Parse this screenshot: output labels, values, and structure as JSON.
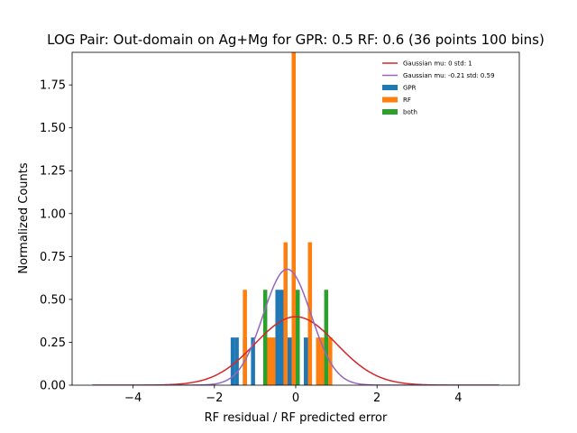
{
  "chart_data": {
    "type": "bar",
    "title": "LOG Pair: Out-domain on Ag+Mg for GPR: 0.5 RF: 0.6 (36 points 100 bins)",
    "xlabel": "RF residual / RF predicted error",
    "ylabel": "Normalized Counts",
    "xlim": [
      -5.5,
      5.5
    ],
    "ylim": [
      0,
      1.94
    ],
    "xticks": [
      -4,
      -2,
      0,
      2,
      4
    ],
    "xtick_labels": [
      "−4",
      "−2",
      "0",
      "2",
      "4"
    ],
    "yticks": [
      0.0,
      0.25,
      0.5,
      0.75,
      1.0,
      1.25,
      1.5,
      1.75
    ],
    "ytick_labels": [
      "0.00",
      "0.25",
      "0.50",
      "0.75",
      "1.00",
      "1.25",
      "1.50",
      "1.75"
    ],
    "bar_width": 0.1,
    "legend_position": "top-right",
    "series": [
      {
        "name": "GPR",
        "kind": "bar",
        "color": "#1f77b4",
        "points": [
          {
            "x": -1.55,
            "y": 0.278
          },
          {
            "x": -1.45,
            "y": 0.278
          },
          {
            "x": -1.25,
            "y": 0.278
          },
          {
            "x": -1.05,
            "y": 0.278
          },
          {
            "x": -0.45,
            "y": 0.556
          },
          {
            "x": -0.35,
            "y": 0.556
          },
          {
            "x": -0.15,
            "y": 0.278
          },
          {
            "x": -0.05,
            "y": 1.667
          },
          {
            "x": 0.05,
            "y": 0.278
          },
          {
            "x": 0.25,
            "y": 0.278
          },
          {
            "x": 0.35,
            "y": 0.556
          }
        ]
      },
      {
        "name": "RF",
        "kind": "bar",
        "color": "#ff7f0e",
        "points": [
          {
            "x": -1.25,
            "y": 0.556
          },
          {
            "x": -0.75,
            "y": 0.278
          },
          {
            "x": -0.65,
            "y": 0.278
          },
          {
            "x": -0.55,
            "y": 0.278
          },
          {
            "x": -0.25,
            "y": 0.833
          },
          {
            "x": -0.05,
            "y": 1.944
          },
          {
            "x": 0.35,
            "y": 0.833
          },
          {
            "x": 0.55,
            "y": 0.278
          },
          {
            "x": 0.65,
            "y": 0.278
          },
          {
            "x": 0.85,
            "y": 0.278
          }
        ]
      },
      {
        "name": "both",
        "kind": "bar",
        "color": "#2ca02c",
        "points": [
          {
            "x": -0.75,
            "y": 0.556
          },
          {
            "x": 0.05,
            "y": 0.556
          },
          {
            "x": 0.75,
            "y": 0.556
          }
        ]
      },
      {
        "name": "Gaussian mu: 0 std: 1",
        "kind": "line",
        "color": "#d62728",
        "mu": 0,
        "std": 1
      },
      {
        "name": "Gaussian mu: -0.21 std: 0.59",
        "kind": "line",
        "color": "#9467bd",
        "mu": -0.21,
        "std": 0.59
      }
    ],
    "curve_x_range": [
      -5,
      5
    ]
  }
}
